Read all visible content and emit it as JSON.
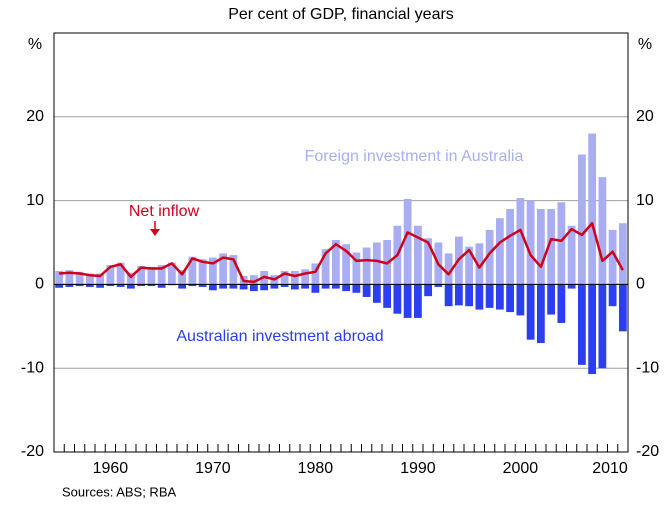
{
  "chart_data": {
    "type": "bar",
    "subtitle": "Per cent of GDP, financial years",
    "y_unit": "%",
    "source": "Sources: ABS; RBA",
    "x": [
      1955,
      1956,
      1957,
      1958,
      1959,
      1960,
      1961,
      1962,
      1963,
      1964,
      1965,
      1966,
      1967,
      1968,
      1969,
      1970,
      1971,
      1972,
      1973,
      1974,
      1975,
      1976,
      1977,
      1978,
      1979,
      1980,
      1981,
      1982,
      1983,
      1984,
      1985,
      1986,
      1987,
      1988,
      1989,
      1990,
      1991,
      1992,
      1993,
      1994,
      1995,
      1996,
      1997,
      1998,
      1999,
      2000,
      2001,
      2002,
      2003,
      2004,
      2005,
      2006,
      2007,
      2008,
      2009,
      2010
    ],
    "series": [
      {
        "name": "Foreign investment in Australia",
        "type": "bar",
        "color": "#a9aef2",
        "values": [
          1.6,
          1.7,
          1.5,
          1.3,
          1.3,
          2.3,
          2.6,
          1.4,
          2.2,
          2.1,
          2.3,
          2.6,
          1.7,
          3.3,
          3.0,
          3.2,
          3.7,
          3.5,
          1.0,
          1.1,
          1.6,
          1.1,
          1.6,
          1.6,
          1.8,
          2.5,
          4.2,
          5.3,
          4.8,
          3.8,
          4.4,
          5.0,
          5.3,
          7.0,
          10.2,
          7.0,
          5.5,
          5.0,
          3.7,
          5.7,
          4.5,
          4.9,
          6.5,
          7.9,
          9.0,
          10.3,
          10.0,
          9.0,
          9.0,
          9.8,
          7.0,
          15.5,
          18.0,
          12.8,
          6.5,
          7.3
        ]
      },
      {
        "name": "Australian investment abroad",
        "type": "bar",
        "color": "#2b3ef2",
        "values": [
          -0.4,
          -0.3,
          -0.2,
          -0.3,
          -0.4,
          -0.2,
          -0.3,
          -0.5,
          -0.2,
          -0.2,
          -0.4,
          -0.1,
          -0.5,
          -0.2,
          -0.3,
          -0.7,
          -0.5,
          -0.5,
          -0.6,
          -0.8,
          -0.7,
          -0.5,
          -0.3,
          -0.6,
          -0.5,
          -1.0,
          -0.5,
          -0.5,
          -0.8,
          -1.0,
          -1.5,
          -2.2,
          -2.8,
          -3.5,
          -4.0,
          -4.0,
          -1.4,
          -0.3,
          -2.6,
          -2.5,
          -2.6,
          -3.0,
          -2.8,
          -3.0,
          -3.3,
          -3.7,
          -6.6,
          -7.0,
          -3.6,
          -4.6,
          -0.5,
          -9.6,
          -10.7,
          -10.0,
          -2.6,
          -5.6
        ]
      },
      {
        "name": "Net inflow",
        "type": "line",
        "color": "#d0001b",
        "values": [
          1.3,
          1.4,
          1.3,
          1.1,
          1.0,
          2.1,
          2.4,
          0.9,
          2.0,
          1.9,
          1.9,
          2.5,
          1.2,
          3.1,
          2.7,
          2.5,
          3.2,
          3.0,
          0.4,
          0.3,
          0.9,
          0.6,
          1.3,
          1.0,
          1.3,
          1.5,
          3.7,
          4.8,
          4.0,
          2.8,
          2.9,
          2.8,
          2.5,
          3.5,
          6.2,
          5.6,
          5.0,
          2.4,
          1.2,
          3.0,
          4.1,
          2.0,
          3.7,
          5.0,
          5.8,
          6.5,
          3.5,
          2.1,
          5.4,
          5.2,
          6.6,
          5.9,
          7.3,
          2.8,
          3.9,
          1.7
        ]
      }
    ],
    "xlim": [
      1954.5,
      2010.5
    ],
    "xticks": [
      1960,
      1970,
      1980,
      1990,
      2000,
      2010
    ],
    "ylim": [
      -20,
      30
    ],
    "yticks": [
      -20,
      -10,
      0,
      10,
      20
    ],
    "grid": true
  }
}
